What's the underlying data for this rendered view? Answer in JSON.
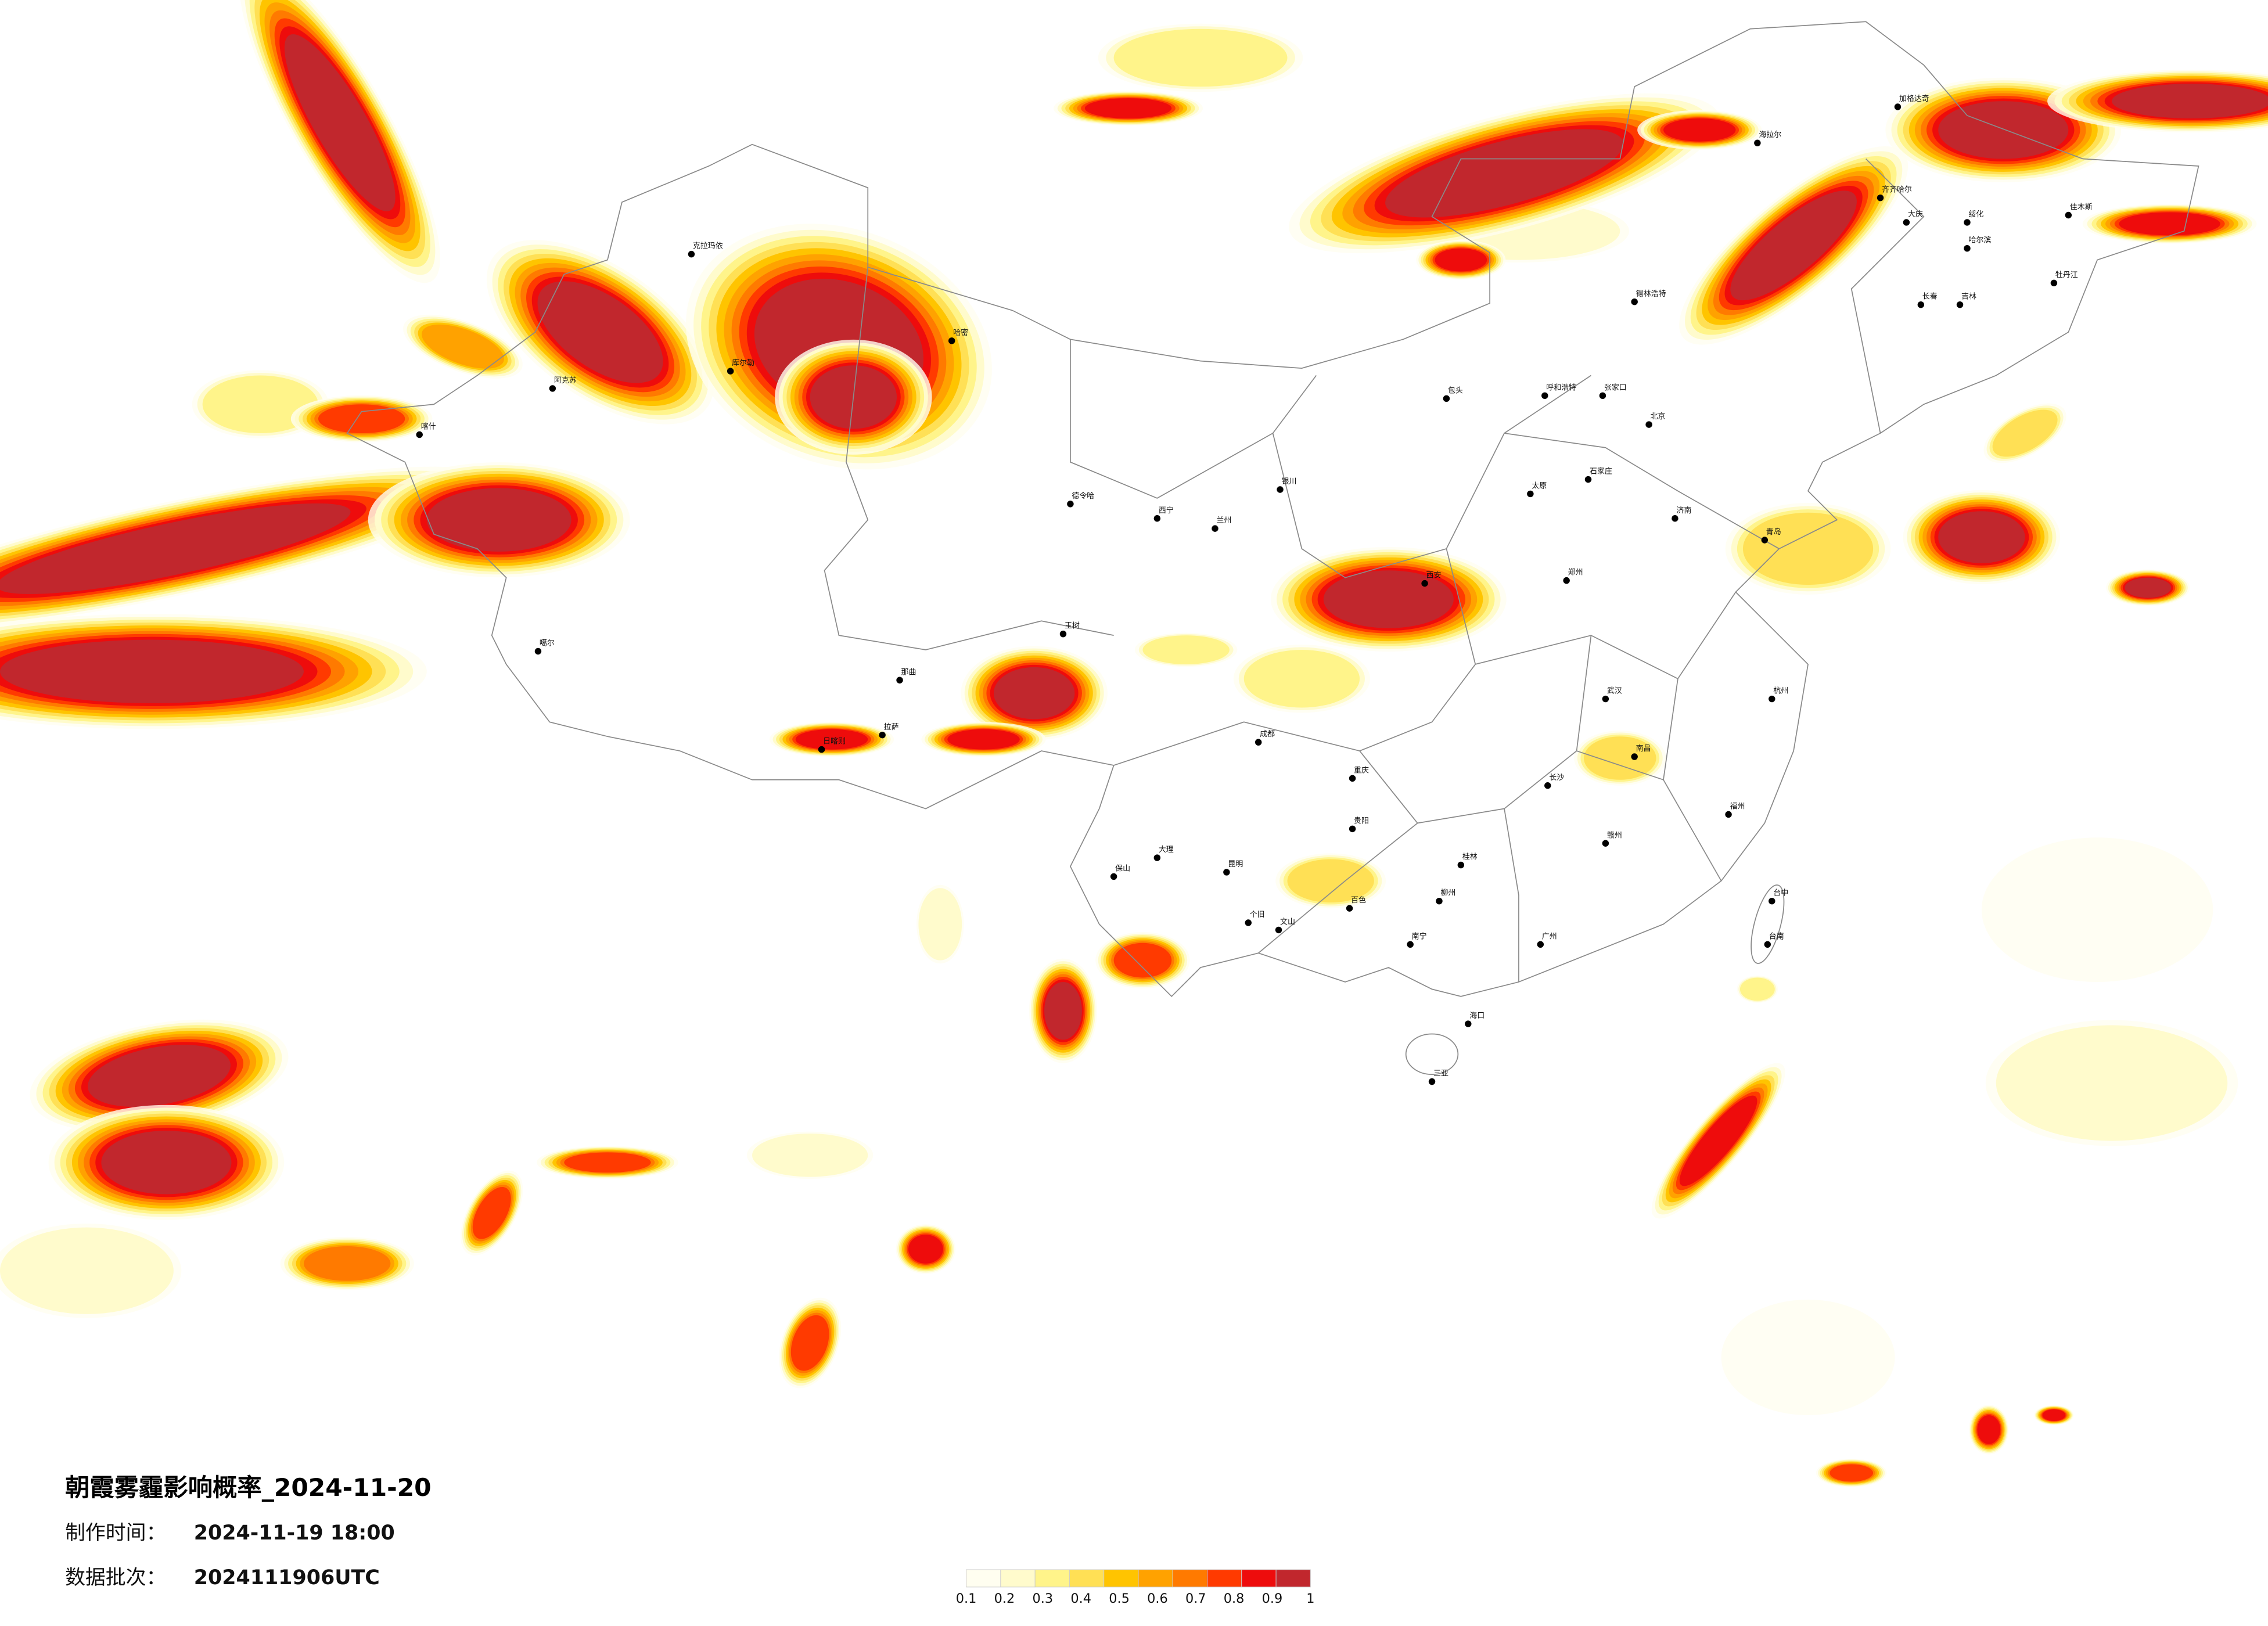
{
  "title": "朝霞雾霾影响概率_2024-11-20",
  "info": [
    {
      "label": "制作时间：",
      "value": "2024-11-19 18:00"
    },
    {
      "label": "数据批次：",
      "value": "2024111906UTC"
    }
  ],
  "legend": {
    "ticks": [
      0.1,
      0.2,
      0.3,
      0.4,
      0.5,
      0.6,
      0.7,
      0.8,
      0.9,
      1
    ],
    "colors": [
      "#fffef0",
      "#fffbcc",
      "#fff48a",
      "#ffe055",
      "#ffc400",
      "#ffa200",
      "#ff7a00",
      "#ff3a00",
      "#ee0c0c",
      "#c1272d"
    ]
  },
  "cities": [
    "加格达奇",
    "海拉尔",
    "齐齐哈尔",
    "大庆",
    "绥化",
    "哈尔滨",
    "佳木斯",
    "牡丹江",
    "吉林",
    "长春",
    "锡林浩特",
    "呼和浩特",
    "包头",
    "张家口",
    "北京",
    "石家庄",
    "太原",
    "济南",
    "青岛",
    "郑州",
    "西安",
    "兰州",
    "西宁",
    "银川",
    "拉萨",
    "日喀则",
    "克拉玛依",
    "哈密",
    "库尔勒",
    "阿克苏",
    "喀什",
    "噶尔",
    "德令哈",
    "玉树",
    "那曲",
    "成都",
    "重庆",
    "贵阳",
    "昆明",
    "南宁",
    "海口",
    "三亚",
    "广州",
    "长沙",
    "武汉",
    "南昌",
    "杭州",
    "福州",
    "台中",
    "台南",
    "大理",
    "保山",
    "个旧",
    "文山",
    "百色",
    "柳州",
    "桂林",
    "赣州"
  ]
}
